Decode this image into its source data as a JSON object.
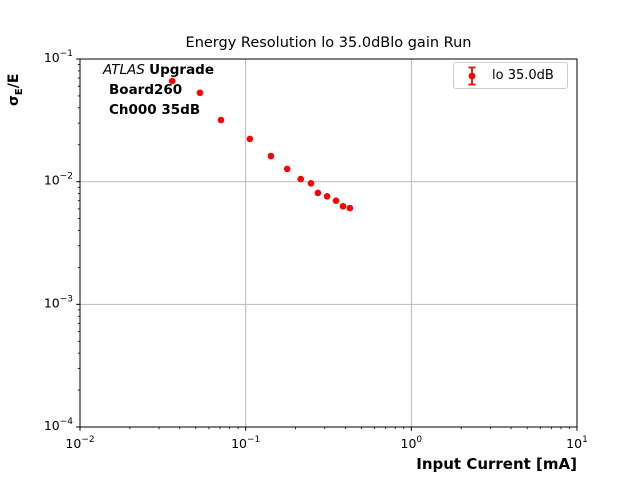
{
  "title": "Energy Resolution lo 35.0dBlo gain Run",
  "annotation": {
    "experiment": "ATLAS",
    "experiment_suffix": "Upgrade",
    "line2": "Board260",
    "line3": "Ch000 35dB"
  },
  "legend": {
    "entries": [
      {
        "label": "lo 35.0dB",
        "marker": "errorbar-point-icon",
        "color": "#ff0000"
      }
    ],
    "position": "upper right"
  },
  "axes": {
    "xlabel": "Input Current [mA]",
    "ylabel": {
      "sigma": "σ",
      "subscript": "E",
      "rest": "/E"
    },
    "x_scale": "log",
    "y_scale": "log",
    "x_tick_exponents": [
      -2,
      -1,
      0,
      1
    ],
    "y_tick_exponents": [
      -1,
      -2,
      -3,
      -4
    ],
    "grid": true
  },
  "chart_data": {
    "type": "scatter",
    "title": "Energy Resolution lo 35.0dBlo gain Run",
    "xlabel": "Input Current [mA]",
    "ylabel": "σ_E/E",
    "x_scale": "log",
    "y_scale": "log",
    "xlim": [
      0.01,
      10
    ],
    "ylim": [
      0.0001,
      0.1
    ],
    "grid": true,
    "legend_position": "upper right",
    "series": [
      {
        "name": "lo 35.0dB",
        "color": "#ff0000",
        "marker": "o",
        "x": [
          0.036,
          0.053,
          0.071,
          0.106,
          0.142,
          0.178,
          0.215,
          0.248,
          0.273,
          0.31,
          0.351,
          0.387,
          0.426
        ],
        "y": [
          0.066,
          0.053,
          0.0318,
          0.0223,
          0.0162,
          0.0127,
          0.0105,
          0.0097,
          0.0081,
          0.0076,
          0.007,
          0.0063,
          0.0061
        ]
      }
    ]
  },
  "colors": {
    "marker": "#ff0000",
    "grid": "#b0b0b0",
    "frame": "#000000",
    "background": "#ffffff",
    "legend_border": "#cccccc"
  }
}
